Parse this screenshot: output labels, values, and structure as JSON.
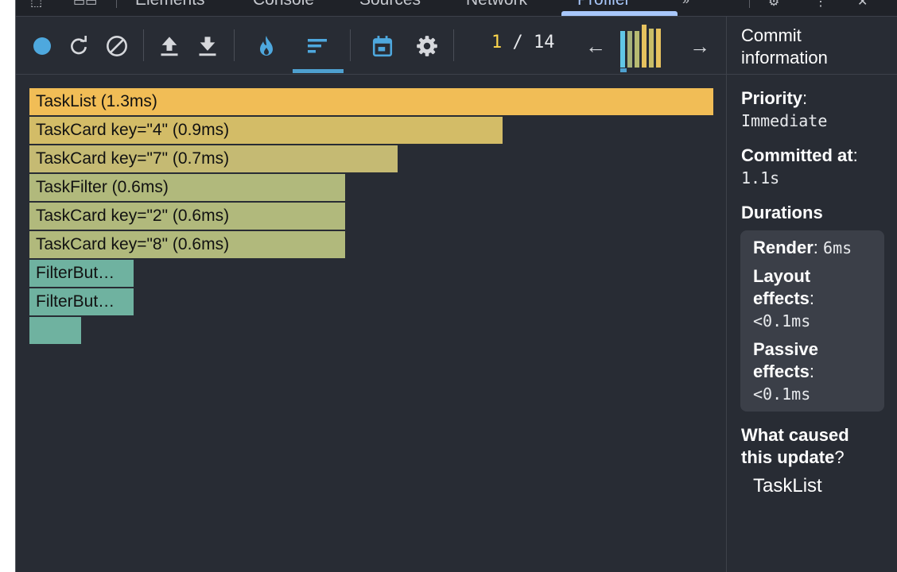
{
  "tabbar": {
    "tabs": [
      "Elements",
      "Console",
      "Sources",
      "Network",
      "Profiler"
    ],
    "active_tab": "Profiler"
  },
  "toolbar": {
    "buttons": [
      {
        "name": "record-icon",
        "color": "#4ea8de"
      },
      {
        "name": "reload-icon"
      },
      {
        "name": "clear-icon"
      },
      {
        "name": "load-profile-icon"
      },
      {
        "name": "save-profile-icon"
      },
      {
        "name": "flame-chart-icon",
        "color": "#4ea8de"
      },
      {
        "name": "ranked-chart-icon",
        "color": "#4ea8de",
        "active": true
      },
      {
        "name": "timeline-icon",
        "color": "#4ea8de"
      },
      {
        "name": "settings-icon"
      }
    ],
    "commit_current": "1",
    "commit_sep": "/",
    "commit_total": "14",
    "prev_label": "←",
    "next_label": "→",
    "commit_bars": [
      {
        "value": 0.85,
        "color": "#61c7e6"
      },
      {
        "value": 0.85,
        "color": "#a7b27a"
      },
      {
        "value": 0.85,
        "color": "#b7bb72"
      },
      {
        "value": 1.0,
        "color": "#e6c25f"
      },
      {
        "value": 0.9,
        "color": "#c8bd68"
      },
      {
        "value": 0.9,
        "color": "#e6c25f"
      }
    ]
  },
  "flame_chart": {
    "bars": [
      {
        "label": "TaskList (1.3ms)",
        "fraction": 1.0,
        "color": "#f1bd56"
      },
      {
        "label": "TaskCard key=\"4\" (0.9ms)",
        "fraction": 0.692,
        "color": "#d3bc67"
      },
      {
        "label": "TaskCard key=\"7\" (0.7ms)",
        "fraction": 0.538,
        "color": "#c5ba73"
      },
      {
        "label": "TaskFilter (0.6ms)",
        "fraction": 0.462,
        "color": "#b1b97c"
      },
      {
        "label": "TaskCard key=\"2\" (0.6ms)",
        "fraction": 0.462,
        "color": "#b1b97c"
      },
      {
        "label": "TaskCard key=\"8\" (0.6ms)",
        "fraction": 0.462,
        "color": "#b1b97c"
      },
      {
        "label": "FilterBut…",
        "fraction": 0.152,
        "color": "#6fb2a0"
      },
      {
        "label": "FilterBut…",
        "fraction": 0.152,
        "color": "#6fb2a0"
      },
      {
        "label": "",
        "fraction": 0.076,
        "color": "#6fb2a0"
      }
    ]
  },
  "sidebar": {
    "title_line1": "Commit",
    "title_line2": "information",
    "priority_label": "Priority",
    "priority_value": "Immediate",
    "committed_label": "Committed at",
    "committed_value": "1.1s",
    "durations_label": "Durations",
    "render_label": "Render",
    "render_value": "6ms",
    "layout_label_1": "Layout",
    "layout_label_2": "effects",
    "layout_value": "<0.1ms",
    "passive_label_1": "Passive",
    "passive_label_2": "effects",
    "passive_value": "<0.1ms",
    "cause_label_1": "What caused",
    "cause_label_2": "this update",
    "cause_value": "TaskList"
  }
}
